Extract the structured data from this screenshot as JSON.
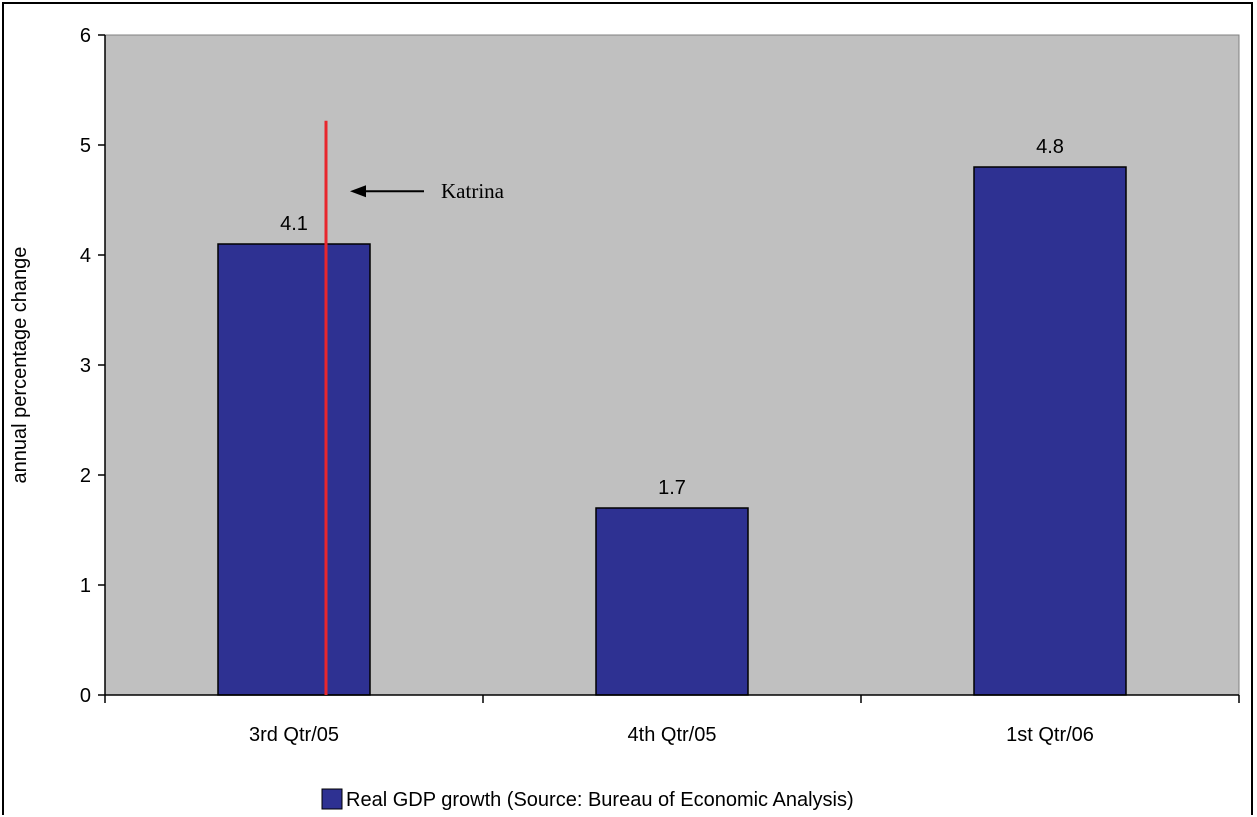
{
  "chart_data": {
    "type": "bar",
    "categories": [
      "3rd Qtr/05",
      "4th Qtr/05",
      "1st Qtr/06"
    ],
    "series": [
      {
        "name": "Real GDP growth (Source: Bureau of Economic Analysis)",
        "values": [
          4.1,
          1.7,
          4.8
        ],
        "color": "#2e3192"
      }
    ],
    "data_labels": [
      "4.1",
      "1.7",
      "4.8"
    ],
    "title": "",
    "xlabel": "",
    "ylabel": "annual percentage change",
    "ylim": [
      0,
      6
    ],
    "yticks": [
      0,
      1,
      2,
      3,
      4,
      5,
      6
    ],
    "grid": false,
    "plot_background": "#c0c0c0",
    "legend_position": "bottom",
    "annotation": {
      "text": "Katrina",
      "marker_color": "#e8262d",
      "category": "3rd Qtr/05"
    }
  }
}
